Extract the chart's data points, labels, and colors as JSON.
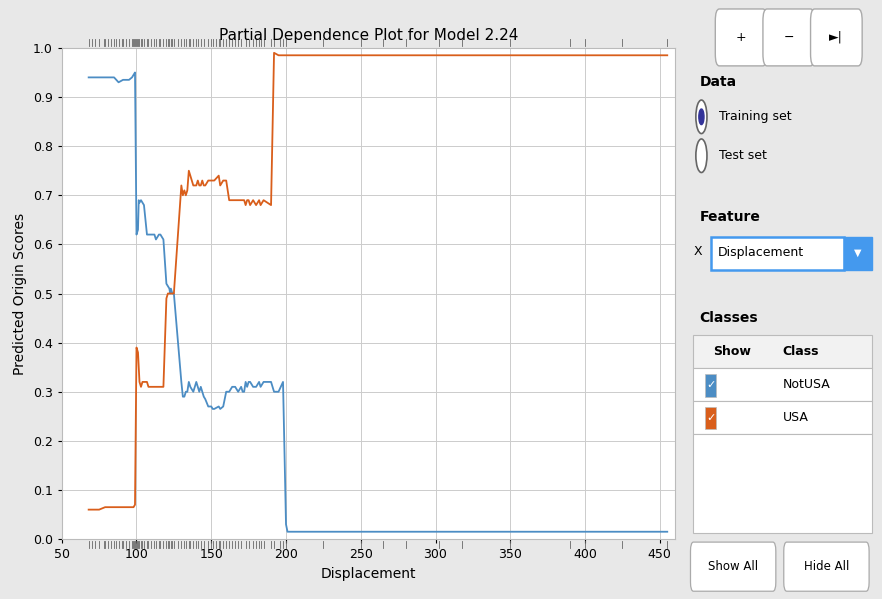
{
  "title": "Partial Dependence Plot for Model 2.24",
  "xlabel": "Displacement",
  "ylabel": "Predicted Origin Scores",
  "xlim": [
    50,
    460
  ],
  "ylim": [
    0,
    1.0
  ],
  "yticks": [
    0,
    0.1,
    0.2,
    0.3,
    0.4,
    0.5,
    0.6,
    0.7,
    0.8,
    0.9,
    1
  ],
  "xticks": [
    50,
    100,
    150,
    200,
    250,
    300,
    350,
    400,
    450
  ],
  "blue_color": "#4C8DC4",
  "orange_color": "#D95E1B",
  "plot_bg_color": "#FFFFFF",
  "grid_color": "#CCCCCC",
  "panel_bg": "#E8E8E8",
  "blue_x": [
    68,
    75,
    79,
    83,
    85,
    88,
    91,
    93,
    95,
    97,
    98,
    99,
    100,
    101,
    101.5,
    102,
    103,
    104,
    105,
    107,
    108,
    110,
    112,
    113,
    115,
    116,
    118,
    120,
    121,
    122,
    122.5,
    123,
    124,
    125,
    130,
    131,
    132,
    133,
    134,
    135,
    136,
    138,
    140,
    141,
    142,
    143,
    144,
    145,
    146,
    148,
    150,
    151,
    152,
    155,
    156,
    158,
    160,
    162,
    164,
    166,
    168,
    170,
    171,
    172,
    173,
    174,
    175,
    176,
    178,
    180,
    182,
    183,
    185,
    190,
    192,
    195,
    198,
    200,
    201,
    210,
    225,
    250,
    275,
    300,
    350,
    390,
    400,
    425,
    455
  ],
  "blue_y": [
    0.94,
    0.94,
    0.94,
    0.94,
    0.94,
    0.93,
    0.935,
    0.935,
    0.935,
    0.94,
    0.945,
    0.95,
    0.62,
    0.63,
    0.69,
    0.685,
    0.69,
    0.685,
    0.68,
    0.62,
    0.62,
    0.62,
    0.62,
    0.61,
    0.62,
    0.62,
    0.61,
    0.52,
    0.515,
    0.51,
    0.5,
    0.51,
    0.5,
    0.5,
    0.32,
    0.29,
    0.29,
    0.3,
    0.3,
    0.32,
    0.31,
    0.3,
    0.32,
    0.31,
    0.3,
    0.31,
    0.3,
    0.29,
    0.285,
    0.27,
    0.27,
    0.265,
    0.265,
    0.27,
    0.265,
    0.27,
    0.3,
    0.3,
    0.31,
    0.31,
    0.3,
    0.31,
    0.3,
    0.3,
    0.32,
    0.31,
    0.32,
    0.32,
    0.31,
    0.31,
    0.32,
    0.31,
    0.32,
    0.32,
    0.3,
    0.3,
    0.32,
    0.03,
    0.015,
    0.015,
    0.015,
    0.015,
    0.015,
    0.015,
    0.015,
    0.015,
    0.015,
    0.015,
    0.015
  ],
  "orange_x": [
    68,
    75,
    79,
    83,
    85,
    88,
    91,
    93,
    95,
    97,
    98,
    99,
    100,
    101,
    102,
    103,
    104,
    105,
    107,
    108,
    110,
    112,
    113,
    115,
    116,
    118,
    120,
    121,
    122,
    122.5,
    123,
    124,
    125,
    130,
    131,
    132,
    133,
    134,
    135,
    136,
    138,
    140,
    141,
    142,
    143,
    144,
    145,
    146,
    148,
    150,
    151,
    152,
    155,
    156,
    158,
    160,
    162,
    164,
    166,
    168,
    170,
    171,
    172,
    173,
    174,
    175,
    176,
    178,
    180,
    182,
    183,
    185,
    190,
    192,
    195,
    198,
    200,
    201,
    210,
    225,
    250,
    275,
    300,
    350,
    390,
    400,
    425,
    455
  ],
  "orange_y": [
    0.06,
    0.06,
    0.065,
    0.065,
    0.065,
    0.065,
    0.065,
    0.065,
    0.065,
    0.065,
    0.065,
    0.07,
    0.39,
    0.38,
    0.32,
    0.31,
    0.32,
    0.32,
    0.32,
    0.31,
    0.31,
    0.31,
    0.31,
    0.31,
    0.31,
    0.31,
    0.49,
    0.5,
    0.5,
    0.5,
    0.5,
    0.5,
    0.5,
    0.72,
    0.7,
    0.71,
    0.7,
    0.71,
    0.75,
    0.74,
    0.72,
    0.72,
    0.73,
    0.72,
    0.72,
    0.73,
    0.72,
    0.72,
    0.73,
    0.73,
    0.73,
    0.73,
    0.74,
    0.72,
    0.73,
    0.73,
    0.69,
    0.69,
    0.69,
    0.69,
    0.69,
    0.69,
    0.69,
    0.68,
    0.69,
    0.69,
    0.68,
    0.69,
    0.68,
    0.69,
    0.68,
    0.69,
    0.68,
    0.99,
    0.985,
    0.985,
    0.985,
    0.985,
    0.985,
    0.985,
    0.985,
    0.985,
    0.985,
    0.985,
    0.985,
    0.985,
    0.985,
    0.985
  ],
  "rug_x": [
    68,
    70,
    72,
    75,
    78,
    79,
    81,
    83,
    85,
    86,
    88,
    90,
    91,
    93,
    95,
    97,
    97.5,
    98,
    99,
    100,
    100.5,
    101,
    102,
    103,
    104,
    105,
    107,
    108,
    110,
    112,
    113,
    115,
    116,
    118,
    120,
    121,
    122,
    123,
    124,
    125,
    128,
    130,
    132,
    133,
    135,
    136,
    138,
    140,
    141,
    143,
    145,
    148,
    150,
    151,
    153,
    155,
    156,
    158,
    160,
    162,
    164,
    166,
    168,
    170,
    173,
    175,
    178,
    180,
    182,
    183,
    185,
    190,
    192,
    196,
    198,
    200,
    225,
    250,
    265,
    280,
    302,
    318,
    350,
    390,
    400,
    425,
    455
  ]
}
